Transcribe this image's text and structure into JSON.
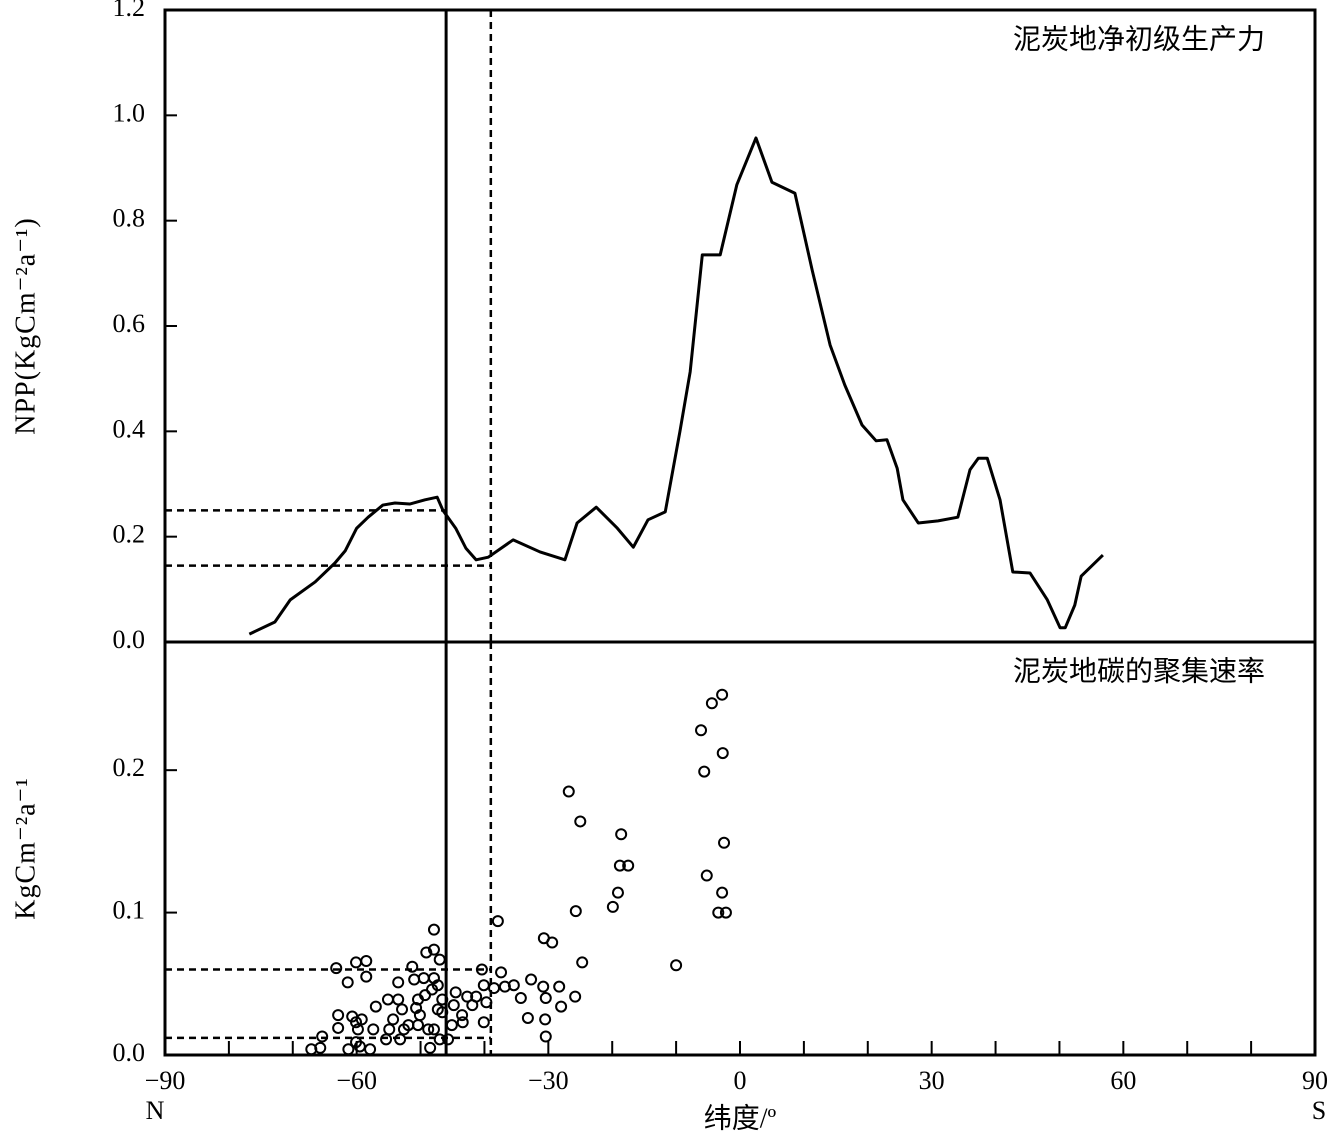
{
  "chart_data": [
    {
      "type": "line",
      "annotation": "泥炭地净初级生产力",
      "ylabel": "NPP(KgCm⁻²a⁻¹)",
      "color": "#000000",
      "xlim": [
        -90,
        90
      ],
      "ylim": [
        0,
        1.2
      ],
      "yticks": [
        {
          "value": 0,
          "label": "0.0"
        },
        0.2,
        0.4,
        0.6,
        0.8,
        {
          "value": 1,
          "label": "1.0"
        },
        1.2
      ],
      "x": [
        -76.8,
        -72.8,
        -70.4,
        -66.5,
        -63.4,
        -61.8,
        -60.0,
        -58.2,
        -55.9,
        -54.0,
        -51.7,
        -49.3,
        -47.4,
        -46.5,
        -44.5,
        -42.9,
        -41.3,
        -39.4,
        -35.5,
        -31.3,
        -27.4,
        -25.5,
        -22.5,
        -19.2,
        -16.7,
        -14.4,
        -11.7,
        -9.4,
        -7.8,
        -5.9,
        -3.1,
        -0.5,
        2.5,
        5.0,
        8.6,
        11.3,
        14.1,
        16.4,
        19.1,
        21.3,
        23.0,
        24.6,
        25.5,
        27.9,
        31.0,
        34.1,
        36.0,
        37.3,
        38.7,
        40.7,
        42.7,
        45.4,
        48.1,
        50.1,
        50.9,
        52.4,
        53.4,
        56.8
      ],
      "values": [
        0.015,
        0.038,
        0.08,
        0.114,
        0.15,
        0.173,
        0.216,
        0.237,
        0.26,
        0.264,
        0.262,
        0.27,
        0.275,
        0.25,
        0.216,
        0.178,
        0.156,
        0.161,
        0.194,
        0.171,
        0.156,
        0.226,
        0.256,
        0.216,
        0.18,
        0.232,
        0.247,
        0.4,
        0.513,
        0.735,
        0.735,
        0.868,
        0.957,
        0.873,
        0.852,
        0.706,
        0.564,
        0.488,
        0.412,
        0.382,
        0.384,
        0.33,
        0.27,
        0.226,
        0.23,
        0.237,
        0.327,
        0.349,
        0.349,
        0.27,
        0.133,
        0.131,
        0.08,
        0.027,
        0.027,
        0.07,
        0.125,
        0.165
      ],
      "vlines": [
        {
          "x": -46,
          "style": "solid"
        },
        {
          "x": -39,
          "style": "dashed"
        }
      ],
      "hlines": [
        {
          "y": 0.25,
          "x_end": -46
        },
        {
          "y": 0.145,
          "x_end": -39
        }
      ]
    },
    {
      "type": "scatter",
      "annotation": "泥炭地碳的聚集速率",
      "ylabel": "KgCm⁻²a⁻¹",
      "xlabel": "纬度/º",
      "x_left_label": "N",
      "x_right_label": "S",
      "color": "#000000",
      "xlim": [
        -90,
        90
      ],
      "ylim": [
        0,
        0.29
      ],
      "xticks": [
        {
          "value": -90,
          "label": "−90"
        },
        {
          "value": -60,
          "label": "−60"
        },
        {
          "value": -30,
          "label": "−30"
        },
        0,
        30,
        60,
        90
      ],
      "xticks_minor": [
        -80,
        -70,
        -50,
        -40,
        -20,
        -10,
        10,
        20,
        40,
        50,
        70,
        80
      ],
      "yticks": [
        {
          "value": 0,
          "label": "0.0"
        },
        0.1,
        0.2
      ],
      "x": [
        -63.2,
        -60.1,
        -58.5,
        -61.4,
        -58.5,
        -62.9,
        -60.7,
        -62.9,
        -60.1,
        -59.2,
        -59.8,
        -67.1,
        -65.7,
        -65.4,
        -61.3,
        -60.1,
        -59.5,
        -57.9,
        -57.4,
        -57.0,
        -55.1,
        -54.9,
        -54.3,
        -55.4,
        -53.5,
        -53.5,
        -52.9,
        -53.2,
        -52.6,
        -51.9,
        -51.3,
        -51.0,
        -50.7,
        -50.4,
        -50.1,
        -50.4,
        -49.5,
        -49.3,
        -48.8,
        -48.5,
        -49.1,
        -47.9,
        -47.9,
        -48.2,
        -47.9,
        -47.3,
        -47.9,
        -47.0,
        -47.3,
        -46.6,
        -46.6,
        -47.0,
        -45.7,
        -45.1,
        -44.8,
        -44.5,
        -43.5,
        -43.4,
        -42.7,
        -41.9,
        -41.3,
        -40.4,
        -40.1,
        -39.7,
        -40.1,
        -38.5,
        -37.9,
        -37.4,
        -36.8,
        -35.4,
        -34.3,
        -33.2,
        -32.7,
        -30.7,
        -29.4,
        -30.8,
        -30.4,
        -30.5,
        -30.4,
        -28.3,
        -28.0,
        -26.8,
        -25.8,
        -25.7,
        -25.0,
        -24.7,
        -19.9,
        -19.1,
        -18.8,
        -18.6,
        -17.5,
        -10.0,
        -6.1,
        -5.6,
        -5.2,
        -4.4,
        -3.4,
        -2.8,
        -2.7,
        -2.8,
        -2.5,
        -2.2
      ],
      "y": [
        0.061,
        0.065,
        0.066,
        0.051,
        0.055,
        0.028,
        0.027,
        0.019,
        0.023,
        0.025,
        0.018,
        0.004,
        0.005,
        0.013,
        0.004,
        0.009,
        0.006,
        0.004,
        0.018,
        0.034,
        0.039,
        0.018,
        0.025,
        0.011,
        0.051,
        0.039,
        0.032,
        0.011,
        0.018,
        0.021,
        0.062,
        0.053,
        0.033,
        0.039,
        0.028,
        0.021,
        0.054,
        0.042,
        0.018,
        0.005,
        0.072,
        0.074,
        0.054,
        0.046,
        0.018,
        0.032,
        0.088,
        0.067,
        0.049,
        0.039,
        0.03,
        0.011,
        0.011,
        0.021,
        0.035,
        0.044,
        0.028,
        0.023,
        0.041,
        0.035,
        0.041,
        0.06,
        0.049,
        0.037,
        0.023,
        0.047,
        0.094,
        0.058,
        0.048,
        0.049,
        0.04,
        0.026,
        0.053,
        0.082,
        0.079,
        0.048,
        0.04,
        0.025,
        0.013,
        0.048,
        0.034,
        0.185,
        0.041,
        0.101,
        0.164,
        0.065,
        0.104,
        0.114,
        0.133,
        0.155,
        0.133,
        0.063,
        0.228,
        0.199,
        0.126,
        0.247,
        0.1,
        0.253,
        0.212,
        0.114,
        0.149,
        0.1
      ],
      "vlines": [
        {
          "x": -46,
          "style": "solid"
        },
        {
          "x": -39,
          "style": "dashed"
        }
      ],
      "hlines": [
        {
          "y": 0.06,
          "x_end": -39
        },
        {
          "y": 0.012,
          "x_end": -39
        }
      ]
    }
  ]
}
